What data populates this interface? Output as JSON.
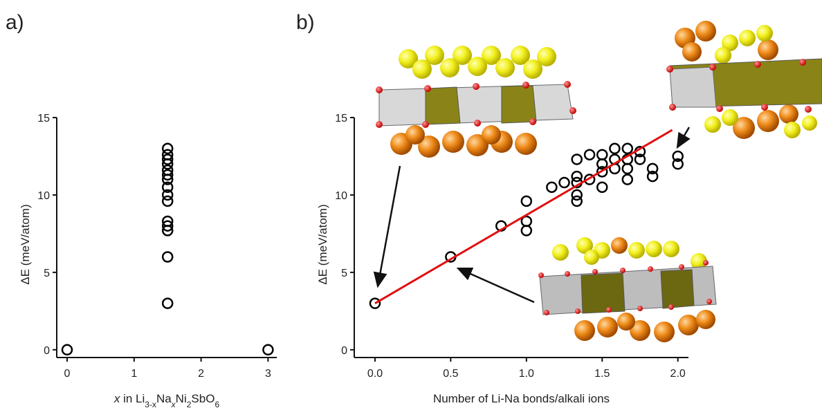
{
  "chart_data": [
    {
      "type": "scatter",
      "title": "a)",
      "xlabel": [
        {
          "text": "x",
          "italic": true
        },
        {
          "text": " in Li"
        },
        {
          "text": "3-x",
          "sub": true
        },
        {
          "text": "Na"
        },
        {
          "text": "x",
          "sub": true,
          "italic": true
        },
        {
          "text": "Ni"
        },
        {
          "text": "2",
          "sub": true
        },
        {
          "text": "SbO"
        },
        {
          "text": "6",
          "sub": true
        }
      ],
      "ylabel": "ΔE (meV/atom)",
      "xlim": [
        -0.155,
        3.13
      ],
      "xticks": [
        0,
        1,
        2,
        3
      ],
      "ylim": [
        -0.5,
        15
      ],
      "yticks": [
        0,
        5,
        10,
        15
      ],
      "series": [
        {
          "color": "#000000",
          "x": [
            0,
            3,
            1.5,
            1.5,
            1.5,
            1.5,
            1.5,
            1.5,
            1.5,
            1.5,
            1.5,
            1.5,
            1.5,
            1.5,
            1.5,
            1.5,
            1.5
          ],
          "values": [
            0,
            0,
            3.0,
            6.0,
            7.7,
            8.0,
            8.3,
            9.6,
            10.0,
            10.5,
            11.0,
            11.3,
            11.6,
            12.0,
            12.3,
            12.6,
            13.0
          ]
        }
      ]
    },
    {
      "type": "scatter",
      "title": "b)",
      "xlabel": [
        {
          "text": "Number of Li-Na bonds/alkali ions"
        }
      ],
      "ylabel": "ΔE (meV/atom)",
      "xlim": [
        -0.137,
        2.07
      ],
      "xticks": [
        {
          "value": 0,
          "label": "0.0"
        },
        {
          "value": 0.5,
          "label": "0.5"
        },
        {
          "value": 1,
          "label": "1.0"
        },
        {
          "value": 1.5,
          "label": "1.5"
        },
        {
          "value": 2,
          "label": "2.0"
        }
      ],
      "ylim": [
        -0.5,
        15
      ],
      "yticks": [
        0,
        5,
        10,
        15
      ],
      "series": [
        {
          "color": "#000000",
          "x": [
            0,
            0.5,
            0.833,
            1,
            1,
            1,
            1.167,
            1.25,
            1.333,
            1.333,
            1.333,
            1.333,
            1.333,
            1.417,
            1.417,
            1.5,
            1.5,
            1.5,
            1.5,
            1.583,
            1.583,
            1.583,
            1.667,
            1.667,
            1.667,
            1.667,
            1.75,
            1.75,
            1.833,
            1.833,
            2,
            2
          ],
          "values": [
            3,
            6,
            8,
            7.7,
            8.3,
            9.6,
            10.5,
            10.8,
            9.6,
            10.0,
            10.8,
            11.2,
            12.3,
            11.0,
            12.6,
            10.5,
            11.5,
            12.0,
            12.6,
            11.7,
            12.3,
            13.0,
            11.0,
            11.7,
            12.3,
            13.0,
            12.3,
            12.8,
            11.2,
            11.7,
            12.0,
            12.5
          ]
        }
      ],
      "fit": {
        "color": "#e01010",
        "x": [
          0,
          1.963
        ],
        "values": [
          3,
          14.2
        ]
      }
    }
  ]
}
